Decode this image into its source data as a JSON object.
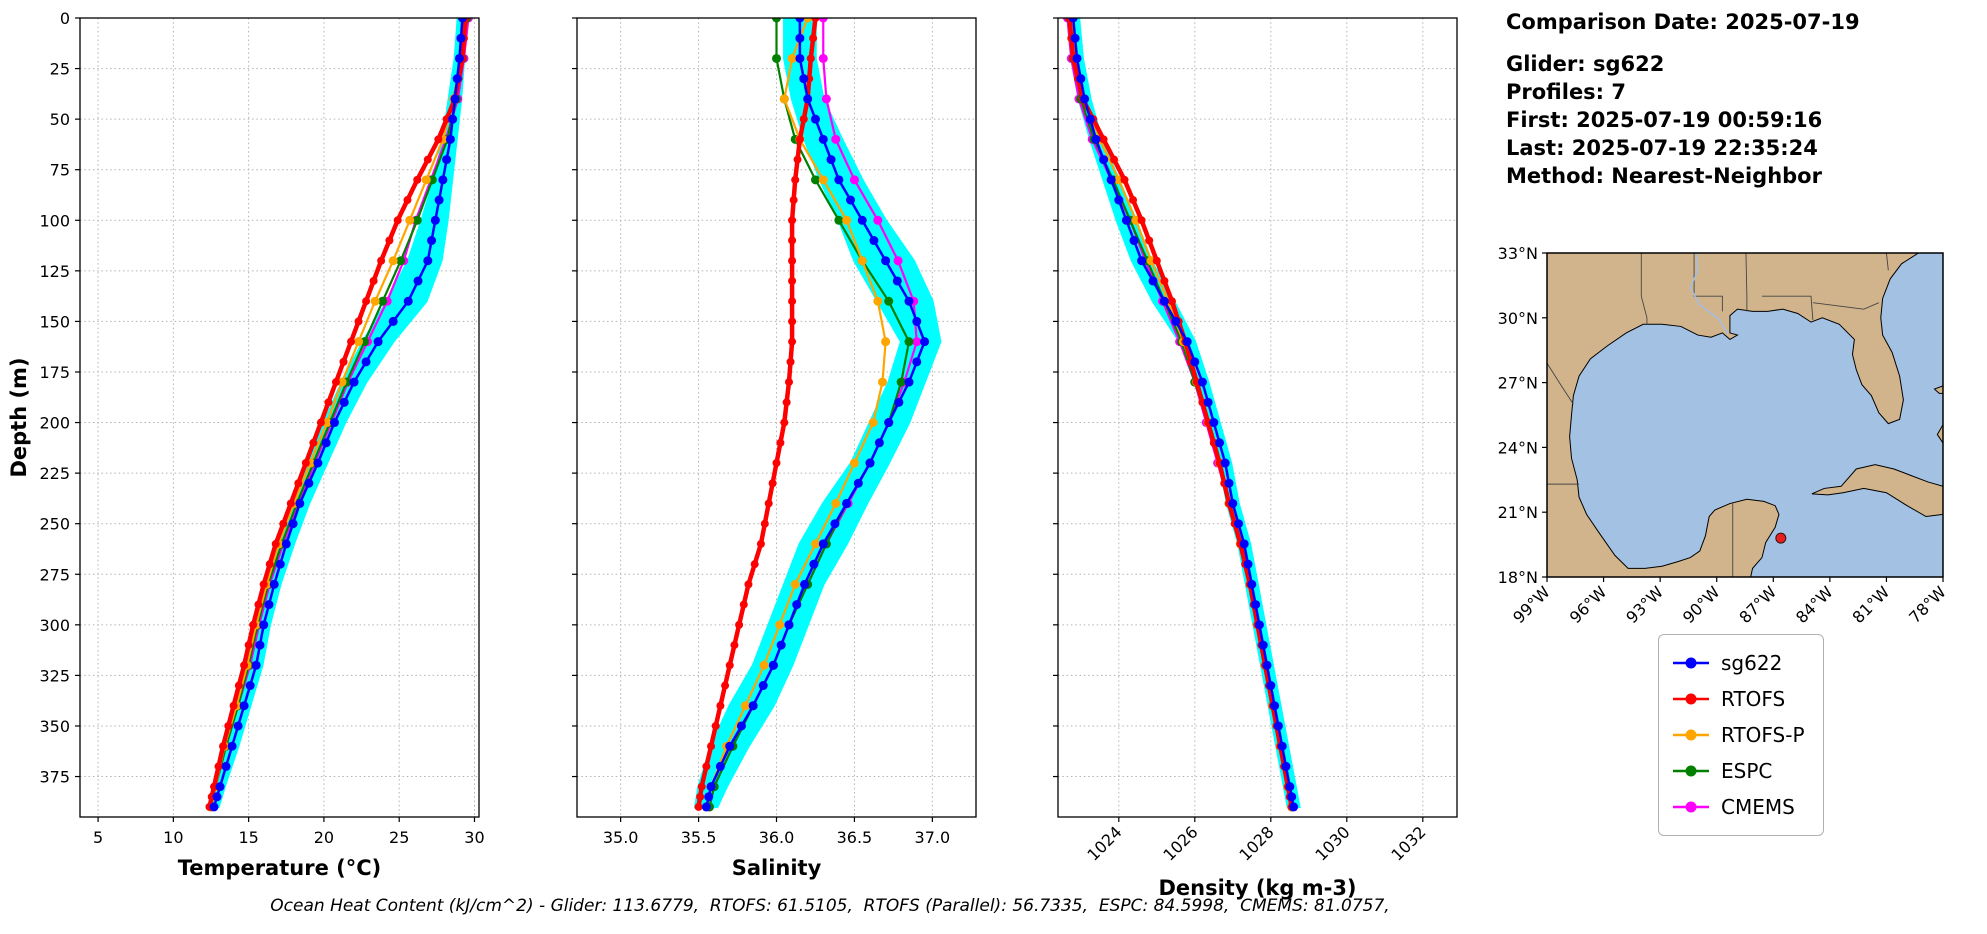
{
  "header": {
    "comparison_date": "Comparison Date: 2025-07-19"
  },
  "info": {
    "glider": "Glider: sg622",
    "profiles": "Profiles: 7",
    "first": "First: 2025-07-19 00:59:16",
    "last": "Last: 2025-07-19 22:35:24",
    "method": "Method: Nearest-Neighbor"
  },
  "caption": "Ocean Heat Content (kJ/cm^2) - Glider: 113.6779,  RTOFS: 61.5105,  RTOFS (Parallel): 56.7335,  ESPC: 84.5998,  CMEMS: 81.0757,",
  "legend": [
    {
      "label": "sg622",
      "color": "#0000ff"
    },
    {
      "label": "RTOFS",
      "color": "#ff0000"
    },
    {
      "label": "RTOFS-P",
      "color": "#ffa500"
    },
    {
      "label": "ESPC",
      "color": "#008000"
    },
    {
      "label": "CMEMS",
      "color": "#ff00ff"
    }
  ],
  "map": {
    "extent": {
      "lon_west": 99,
      "lon_east": 78,
      "lat_south": 18,
      "lat_north": 33
    },
    "lat_values": [
      33,
      30,
      27,
      24,
      21,
      18
    ],
    "lat_ticks": [
      "33°N",
      "30°N",
      "27°N",
      "24°N",
      "21°N",
      "18°N"
    ],
    "lon_values": [
      99,
      96,
      93,
      90,
      87,
      84,
      81,
      78
    ],
    "lon_ticks": [
      "99°W",
      "96°W",
      "93°W",
      "90°W",
      "87°W",
      "84°W",
      "81°W",
      "78°W"
    ],
    "marker": {
      "lon": 86.6,
      "lat": 19.8,
      "color": "#e62020"
    },
    "land_color": "#d2b48c",
    "water_color": "#a3c1e2"
  },
  "chart_data": {
    "type": "line",
    "title": "",
    "depths": [
      0,
      20,
      40,
      60,
      80,
      100,
      120,
      140,
      160,
      180,
      200,
      220,
      240,
      260,
      280,
      300,
      320,
      340,
      360,
      380,
      390
    ],
    "depth_axis": {
      "label": "Depth (m)",
      "ticks": [
        0,
        25,
        50,
        75,
        100,
        125,
        150,
        175,
        200,
        225,
        250,
        275,
        300,
        325,
        350,
        375
      ],
      "range": [
        0,
        395
      ]
    },
    "panels": [
      {
        "id": "temperature",
        "xlabel": "Temperature (°C)",
        "xlim": [
          3.8,
          30.3
        ],
        "xticks": [
          5,
          10,
          15,
          20,
          25,
          30
        ],
        "tick_labels": [
          "5",
          "10",
          "15",
          "20",
          "25",
          "30"
        ],
        "tick_rotation": 0
      },
      {
        "id": "salinity",
        "xlabel": "Salinity",
        "xlim": [
          34.72,
          37.28
        ],
        "xticks": [
          35.0,
          35.5,
          36.0,
          36.5,
          37.0
        ],
        "tick_labels": [
          "35.0",
          "35.5",
          "36.0",
          "36.5",
          "37.0"
        ],
        "tick_rotation": 0
      },
      {
        "id": "density",
        "xlabel": "Density (kg m-3)",
        "xlim": [
          1022.4,
          1032.9
        ],
        "xticks": [
          1024,
          1026,
          1028,
          1030,
          1032
        ],
        "tick_labels": [
          "1024",
          "1026",
          "1028",
          "1030",
          "1032"
        ],
        "tick_rotation": -45
      }
    ],
    "envelope": {
      "name": "glider-min-max-envelope",
      "color": "#00ffff",
      "values": {
        "temperature": {
          "low": [
            28.9,
            28.7,
            28.3,
            27.9,
            27.3,
            26.5,
            25.6,
            24.2,
            22.6,
            21.2,
            20.0,
            19.0,
            17.9,
            17.1,
            16.3,
            15.6,
            15.1,
            14.3,
            13.5,
            12.8,
            12.4
          ],
          "high": [
            29.5,
            29.3,
            29.1,
            28.8,
            28.5,
            28.2,
            27.8,
            26.8,
            24.6,
            22.8,
            21.4,
            20.2,
            19.0,
            18.0,
            17.1,
            16.4,
            15.9,
            15.1,
            14.3,
            13.4,
            13.0
          ]
        },
        "salinity": {
          "low": [
            36.05,
            36.05,
            36.1,
            36.18,
            36.28,
            36.4,
            36.5,
            36.65,
            36.8,
            36.72,
            36.6,
            36.48,
            36.3,
            36.15,
            36.05,
            35.95,
            35.85,
            35.7,
            35.58,
            35.5,
            35.48
          ],
          "high": [
            36.25,
            36.25,
            36.3,
            36.42,
            36.55,
            36.7,
            36.88,
            37.0,
            37.05,
            36.95,
            36.85,
            36.72,
            36.58,
            36.45,
            36.3,
            36.2,
            36.1,
            35.98,
            35.82,
            35.68,
            35.62
          ]
        },
        "density": {
          "low": [
            1022.65,
            1022.75,
            1022.95,
            1023.25,
            1023.6,
            1023.95,
            1024.35,
            1024.9,
            1025.6,
            1026.05,
            1026.35,
            1026.65,
            1026.85,
            1027.15,
            1027.35,
            1027.55,
            1027.75,
            1027.95,
            1028.15,
            1028.35,
            1028.45
          ],
          "high": [
            1022.95,
            1023.05,
            1023.25,
            1023.55,
            1024.0,
            1024.45,
            1024.85,
            1025.45,
            1026.0,
            1026.35,
            1026.65,
            1026.95,
            1027.15,
            1027.45,
            1027.65,
            1027.85,
            1028.05,
            1028.25,
            1028.45,
            1028.65,
            1028.75
          ]
        }
      }
    },
    "series": [
      {
        "name": "sg622",
        "color": "#0000ff",
        "line_width": 2.5,
        "marker_r": 4.5,
        "dense_markers": true,
        "values": {
          "temperature": [
            29.2,
            29.0,
            28.7,
            28.4,
            27.9,
            27.4,
            26.9,
            25.6,
            23.6,
            22.0,
            20.7,
            19.6,
            18.4,
            17.5,
            16.7,
            16.0,
            15.5,
            14.7,
            13.9,
            13.1,
            12.7
          ],
          "salinity": [
            36.15,
            36.15,
            36.2,
            36.3,
            36.4,
            36.55,
            36.7,
            36.85,
            36.95,
            36.85,
            36.72,
            36.6,
            36.45,
            36.3,
            36.18,
            36.08,
            35.98,
            35.85,
            35.7,
            35.58,
            35.55
          ],
          "density": [
            1022.8,
            1022.9,
            1023.1,
            1023.4,
            1023.8,
            1024.2,
            1024.6,
            1025.2,
            1025.8,
            1026.2,
            1026.5,
            1026.8,
            1027.0,
            1027.3,
            1027.5,
            1027.7,
            1027.9,
            1028.1,
            1028.3,
            1028.5,
            1028.6
          ]
        }
      },
      {
        "name": "RTOFS",
        "color": "#ff0000",
        "line_width": 4.5,
        "marker_r": 4.0,
        "dense_markers": true,
        "values": {
          "temperature": [
            29.4,
            29.2,
            28.7,
            27.6,
            26.2,
            24.9,
            23.8,
            22.8,
            21.8,
            20.8,
            19.8,
            18.8,
            17.8,
            16.8,
            16.0,
            15.3,
            14.7,
            14.0,
            13.3,
            12.7,
            12.4
          ],
          "salinity": [
            36.25,
            36.22,
            36.2,
            36.15,
            36.12,
            36.1,
            36.1,
            36.1,
            36.1,
            36.08,
            36.05,
            36.0,
            35.95,
            35.9,
            35.82,
            35.76,
            35.7,
            35.64,
            35.58,
            35.52,
            35.5
          ],
          "density": [
            1022.7,
            1022.8,
            1023.05,
            1023.6,
            1024.15,
            1024.6,
            1025.0,
            1025.4,
            1025.75,
            1026.05,
            1026.35,
            1026.65,
            1026.9,
            1027.2,
            1027.45,
            1027.65,
            1027.85,
            1028.05,
            1028.25,
            1028.45,
            1028.55
          ]
        }
      },
      {
        "name": "RTOFS-P",
        "color": "#ffa500",
        "line_width": 2.2,
        "marker_r": 4.5,
        "dense_markers": false,
        "values": {
          "temperature": [
            29.3,
            29.1,
            28.6,
            27.9,
            26.8,
            25.7,
            24.6,
            23.4,
            22.3,
            21.2,
            20.2,
            19.1,
            18.0,
            17.0,
            16.2,
            15.5,
            14.9,
            14.2,
            13.4,
            12.8,
            12.5
          ],
          "salinity": [
            36.2,
            36.1,
            36.05,
            36.15,
            36.3,
            36.45,
            36.55,
            36.65,
            36.7,
            36.68,
            36.62,
            36.5,
            36.38,
            36.25,
            36.12,
            36.02,
            35.92,
            35.8,
            35.68,
            35.58,
            35.55
          ],
          "density": [
            1022.75,
            1022.85,
            1023.1,
            1023.5,
            1024.0,
            1024.45,
            1024.85,
            1025.3,
            1025.7,
            1026.05,
            1026.35,
            1026.65,
            1026.9,
            1027.2,
            1027.45,
            1027.65,
            1027.85,
            1028.05,
            1028.25,
            1028.45,
            1028.55
          ]
        }
      },
      {
        "name": "ESPC",
        "color": "#008000",
        "line_width": 2.2,
        "marker_r": 4.5,
        "dense_markers": false,
        "values": {
          "temperature": [
            29.5,
            29.2,
            28.8,
            28.2,
            27.2,
            26.2,
            25.1,
            23.9,
            22.7,
            21.5,
            20.4,
            19.3,
            18.2,
            17.2,
            16.3,
            15.6,
            15.0,
            14.3,
            13.5,
            12.8,
            12.5
          ],
          "salinity": [
            36.0,
            36.0,
            36.05,
            36.12,
            36.25,
            36.4,
            36.55,
            36.72,
            36.85,
            36.8,
            36.72,
            36.6,
            36.45,
            36.32,
            36.2,
            36.08,
            35.98,
            35.85,
            35.72,
            35.6,
            35.57
          ],
          "density": [
            1022.7,
            1022.8,
            1023.0,
            1023.35,
            1023.85,
            1024.3,
            1024.75,
            1025.2,
            1025.65,
            1026.0,
            1026.35,
            1026.65,
            1026.9,
            1027.2,
            1027.45,
            1027.65,
            1027.85,
            1028.05,
            1028.25,
            1028.45,
            1028.55
          ]
        }
      },
      {
        "name": "CMEMS",
        "color": "#ff00ff",
        "line_width": 2.2,
        "marker_r": 4.5,
        "dense_markers": false,
        "values": {
          "temperature": [
            29.6,
            29.3,
            28.9,
            28.1,
            27.1,
            26.1,
            25.3,
            24.2,
            22.9,
            21.6,
            20.5,
            19.4,
            18.3,
            17.3,
            16.4,
            15.7,
            15.1,
            14.3,
            13.5,
            12.8,
            12.5
          ],
          "salinity": [
            36.3,
            36.3,
            36.32,
            36.38,
            36.5,
            36.65,
            36.78,
            36.88,
            36.9,
            36.82,
            36.72,
            36.6,
            36.46,
            36.32,
            36.2,
            36.08,
            35.98,
            35.85,
            35.72,
            35.6,
            35.57
          ],
          "density": [
            1022.65,
            1022.75,
            1022.95,
            1023.3,
            1023.8,
            1024.3,
            1024.7,
            1025.15,
            1025.6,
            1026.0,
            1026.3,
            1026.6,
            1026.9,
            1027.2,
            1027.45,
            1027.65,
            1027.85,
            1028.05,
            1028.25,
            1028.45,
            1028.55
          ]
        }
      }
    ]
  }
}
